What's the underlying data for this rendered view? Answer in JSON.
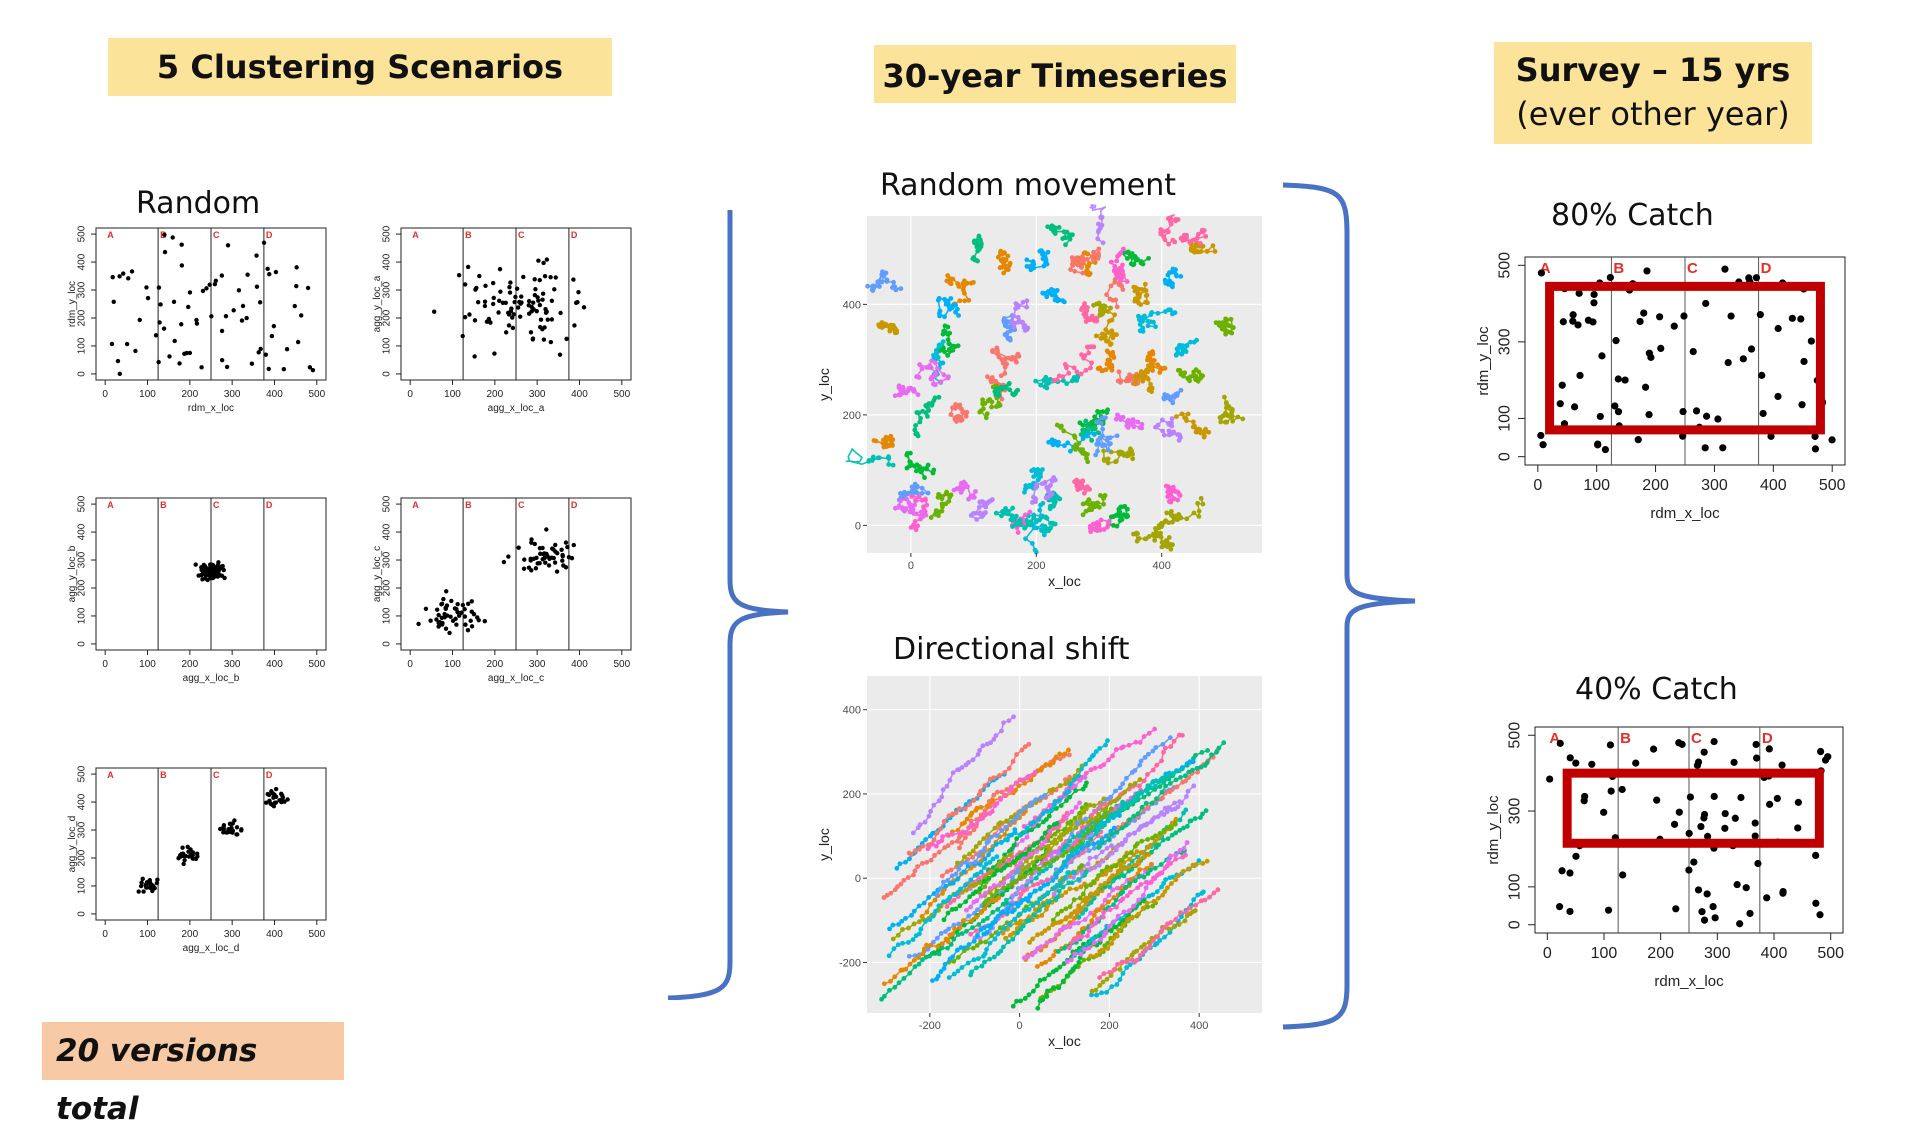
{
  "headers": {
    "clustering": "5 Clustering Scenarios",
    "timeseries": "30-year Timeseries",
    "survey_line1": "Survey – 15 yrs",
    "survey_line2": "(ever other year)"
  },
  "footer": "20 versions total",
  "titles": {
    "random": "Random",
    "random_movement": "Random movement",
    "directional_shift": "Directional shift",
    "catch80": "80% Catch",
    "catch40": "40% Catch"
  },
  "colors": {
    "header_bg": "#fbe49a",
    "footer_bg": "#f7c9a4",
    "brace": "#4a72c4",
    "survey_box": "#c00000",
    "region_label": "#e0302a",
    "ggplot_bg": "#ebebeb"
  },
  "region_labels": [
    "A",
    "B",
    "C",
    "D"
  ],
  "chart_data": [
    {
      "id": "rdm",
      "type": "scatter",
      "xlabel": "rdm_x_loc",
      "ylabel": "rdm_y_loc",
      "xlim": [
        0,
        500
      ],
      "ylim": [
        0,
        500
      ],
      "x_ticks": [
        0,
        100,
        200,
        300,
        400,
        500
      ],
      "y_ticks": [
        0,
        100,
        200,
        300,
        400,
        500
      ],
      "region_lines_x": [
        125,
        250,
        375
      ],
      "pattern": "uniform",
      "points": 80
    },
    {
      "id": "agg_a",
      "type": "scatter",
      "xlabel": "agg_x_loc_a",
      "ylabel": "agg_y_loc_a",
      "xlim": [
        0,
        500
      ],
      "ylim": [
        0,
        500
      ],
      "x_ticks": [
        0,
        100,
        200,
        300,
        400,
        500
      ],
      "y_ticks": [
        0,
        100,
        200,
        300,
        400,
        500
      ],
      "region_lines_x": [
        125,
        250,
        375
      ],
      "pattern": "broad cluster centered near (250, 250)",
      "points": 100
    },
    {
      "id": "agg_b",
      "type": "scatter",
      "xlabel": "agg_x_loc_b",
      "ylabel": "agg_y_loc_b",
      "xlim": [
        0,
        500
      ],
      "ylim": [
        0,
        500
      ],
      "x_ticks": [
        0,
        100,
        200,
        300,
        400,
        500
      ],
      "y_ticks": [
        0,
        100,
        200,
        300,
        400,
        500
      ],
      "region_lines_x": [
        125,
        250,
        375
      ],
      "pattern": "tight cluster centered near (250, 260)",
      "points": 100
    },
    {
      "id": "agg_c",
      "type": "scatter",
      "xlabel": "agg_x_loc_c",
      "ylabel": "agg_y_loc_c",
      "xlim": [
        0,
        500
      ],
      "ylim": [
        0,
        500
      ],
      "x_ticks": [
        0,
        100,
        200,
        300,
        400,
        500
      ],
      "y_ticks": [
        0,
        100,
        200,
        300,
        400,
        500
      ],
      "region_lines_x": [
        125,
        250,
        375
      ],
      "pattern": "two clusters near (95, 105) and (315, 320)",
      "points": 100
    },
    {
      "id": "agg_d",
      "type": "scatter",
      "xlabel": "agg_x_loc_d",
      "ylabel": "agg_y_loc_d",
      "xlim": [
        0,
        500
      ],
      "ylim": [
        0,
        500
      ],
      "x_ticks": [
        0,
        100,
        200,
        300,
        400,
        500
      ],
      "y_ticks": [
        0,
        100,
        200,
        300,
        400,
        500
      ],
      "region_lines_x": [
        125,
        250,
        375
      ],
      "pattern": "four clusters near (100,100), (195,205), (295,300), (400,410)",
      "points": 100
    },
    {
      "id": "random_movement",
      "type": "scatter",
      "xlabel": "x_loc",
      "ylabel": "y_loc",
      "xlim": [
        -70,
        560
      ],
      "ylim": [
        -50,
        560
      ],
      "x_ticks": [
        0,
        200,
        400
      ],
      "y_ticks": [
        0,
        200,
        400
      ],
      "pattern": "many colored tracks wandering locally"
    },
    {
      "id": "directional_shift",
      "type": "line",
      "xlabel": "x_loc",
      "ylabel": "y_loc",
      "xlim": [
        -340,
        540
      ],
      "ylim": [
        -320,
        480
      ],
      "x_ticks": [
        -200,
        0,
        200,
        400
      ],
      "y_ticks": [
        -200,
        0,
        200,
        400
      ],
      "pattern": "many colored tracks drifting diagonally up-right"
    },
    {
      "id": "catch80",
      "type": "scatter",
      "xlabel": "rdm_x_loc",
      "ylabel": "rdm_y_loc",
      "xlim": [
        0,
        500
      ],
      "ylim": [
        0,
        500
      ],
      "x_ticks": [
        0,
        100,
        200,
        300,
        400,
        500
      ],
      "y_ticks": [
        0,
        100,
        300,
        500
      ],
      "region_lines_x": [
        125,
        250,
        375
      ],
      "survey_area": {
        "x": [
          20,
          480
        ],
        "y": [
          70,
          445
        ]
      }
    },
    {
      "id": "catch40",
      "type": "scatter",
      "xlabel": "rdm_x_loc",
      "ylabel": "rdm_y_loc",
      "xlim": [
        0,
        500
      ],
      "ylim": [
        0,
        500
      ],
      "x_ticks": [
        0,
        100,
        200,
        300,
        400,
        500
      ],
      "y_ticks": [
        0,
        100,
        300,
        500
      ],
      "region_lines_x": [
        125,
        250,
        375
      ],
      "survey_area": {
        "x": [
          35,
          480
        ],
        "y": [
          215,
          400
        ]
      }
    }
  ]
}
